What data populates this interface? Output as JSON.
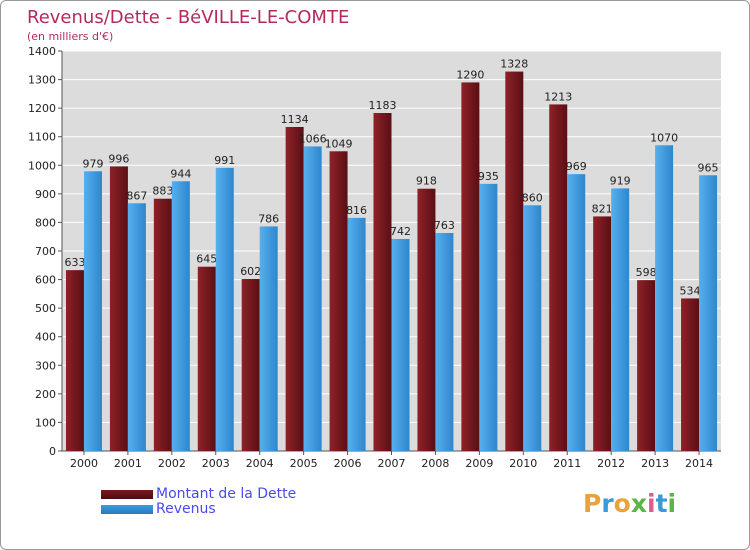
{
  "header": {
    "title": "Revenus/Dette - BéVILLE-LE-COMTE",
    "subtitle": "(en milliers d'€)"
  },
  "chart_data": {
    "type": "bar",
    "categories": [
      "2000",
      "2001",
      "2002",
      "2003",
      "2004",
      "2005",
      "2006",
      "2007",
      "2008",
      "2009",
      "2010",
      "2011",
      "2012",
      "2013",
      "2014"
    ],
    "series": [
      {
        "name": "Montant de la Dette",
        "color": "#7a1a1f",
        "values": [
          633,
          996,
          883,
          645,
          602,
          1134,
          1049,
          1183,
          918,
          1290,
          1328,
          1213,
          821,
          598,
          534
        ]
      },
      {
        "name": "Revenus",
        "color": "#3d9be0",
        "values": [
          979,
          867,
          944,
          991,
          786,
          1066,
          816,
          742,
          763,
          935,
          860,
          969,
          919,
          1070,
          965
        ]
      }
    ],
    "ylim": [
      0,
      1400
    ],
    "yticks": [
      0,
      100,
      200,
      300,
      400,
      500,
      600,
      700,
      800,
      900,
      1000,
      1100,
      1200,
      1300,
      1400
    ],
    "grid": true,
    "legend": "bottom-left"
  },
  "legend": {
    "items": [
      {
        "label": "Montant de la Dette",
        "color": "#7a1a1f"
      },
      {
        "label": "Revenus",
        "color": "#3d9be0"
      }
    ]
  },
  "logo": {
    "letters": [
      "P",
      "r",
      "o",
      "x",
      "i",
      "t",
      "i"
    ],
    "colors": [
      "#e8a33a",
      "#3a9ad9",
      "#e8a33a",
      "#5bb447",
      "#e05c8a",
      "#3a9ad9",
      "#5bb447"
    ]
  }
}
